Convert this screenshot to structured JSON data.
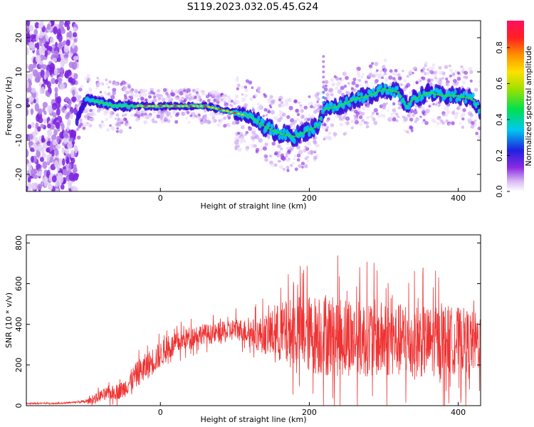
{
  "figure": {
    "title": "S119.2023.032.05.45.G24"
  },
  "chart_data": [
    {
      "type": "heatmap",
      "xlabel": "Height of straight line (km)",
      "ylabel": "Frequency (Hz)",
      "xlim": [
        -180,
        430
      ],
      "ylim": [
        -25,
        25
      ],
      "xticks": [
        0,
        200,
        400
      ],
      "yticks": [
        -20,
        -10,
        0,
        10,
        20
      ],
      "grid": false,
      "colorbar": {
        "label": "Normalized spectral amplitude",
        "ticks": [
          0.0,
          0.2,
          0.4,
          0.6,
          0.8
        ],
        "range": [
          0,
          0.95
        ],
        "colormap": "rainbow-white-violet-to-magenta"
      },
      "noise_band_x": [
        -180,
        -112
      ],
      "ridge": [
        {
          "x": -112,
          "y": -4
        },
        {
          "x": -100,
          "y": 2
        },
        {
          "x": -80,
          "y": 1
        },
        {
          "x": -60,
          "y": 0
        },
        {
          "x": -40,
          "y": 0
        },
        {
          "x": -20,
          "y": 0
        },
        {
          "x": 0,
          "y": 0
        },
        {
          "x": 20,
          "y": 0
        },
        {
          "x": 40,
          "y": 0
        },
        {
          "x": 60,
          "y": 0
        },
        {
          "x": 80,
          "y": -1
        },
        {
          "x": 100,
          "y": -2
        },
        {
          "x": 120,
          "y": -3
        },
        {
          "x": 140,
          "y": -6
        },
        {
          "x": 160,
          "y": -8
        },
        {
          "x": 180,
          "y": -9
        },
        {
          "x": 200,
          "y": -7
        },
        {
          "x": 210,
          "y": -6
        },
        {
          "x": 220,
          "y": -1
        },
        {
          "x": 240,
          "y": 0
        },
        {
          "x": 260,
          "y": 2
        },
        {
          "x": 280,
          "y": 3
        },
        {
          "x": 300,
          "y": 5
        },
        {
          "x": 320,
          "y": 4
        },
        {
          "x": 330,
          "y": 0
        },
        {
          "x": 340,
          "y": 2
        },
        {
          "x": 360,
          "y": 4
        },
        {
          "x": 380,
          "y": 3
        },
        {
          "x": 400,
          "y": 3
        },
        {
          "x": 420,
          "y": 2
        },
        {
          "x": 430,
          "y": -2
        }
      ]
    },
    {
      "type": "line",
      "xlabel": "Height of straight line (km)",
      "ylabel": "SNR (10 * v/v)",
      "xlim": [
        -180,
        430
      ],
      "ylim": [
        0,
        840
      ],
      "xticks": [
        0,
        200,
        400
      ],
      "yticks": [
        0,
        200,
        400,
        600,
        800
      ],
      "grid": false,
      "line_color": "#ee3333",
      "series": [
        {
          "x": [
            -180,
            -160,
            -140,
            -120,
            -110,
            -100,
            -90,
            -80,
            -70,
            -60,
            -50,
            -40,
            -30,
            -20,
            -10,
            0,
            10,
            20,
            30,
            40,
            50,
            60,
            70,
            80,
            90,
            100,
            110,
            120,
            130,
            140,
            150,
            160,
            170,
            180,
            190,
            200,
            210,
            220,
            230,
            240,
            250,
            260,
            270,
            280,
            290,
            300,
            310,
            320,
            330,
            340,
            350,
            360,
            370,
            380,
            390,
            400,
            410,
            420,
            430
          ],
          "values": [
            10,
            12,
            11,
            15,
            18,
            20,
            30,
            50,
            60,
            65,
            80,
            120,
            160,
            190,
            220,
            250,
            280,
            300,
            320,
            340,
            350,
            355,
            350,
            360,
            360,
            380,
            370,
            360,
            350,
            350,
            350,
            360,
            350,
            370,
            360,
            350,
            350,
            345,
            350,
            340,
            345,
            330,
            325,
            340,
            330,
            320,
            330,
            320,
            315,
            310,
            320,
            310,
            320,
            330,
            320,
            325,
            320,
            310,
            320
          ],
          "spread": [
            4,
            4,
            4,
            5,
            6,
            10,
            25,
            35,
            40,
            45,
            55,
            70,
            80,
            85,
            85,
            80,
            75,
            70,
            65,
            65,
            65,
            60,
            60,
            65,
            65,
            70,
            70,
            80,
            100,
            120,
            150,
            190,
            210,
            220,
            230,
            240,
            250,
            260,
            250,
            250,
            250,
            240,
            240,
            240,
            240,
            240,
            230,
            230,
            230,
            230,
            230,
            220,
            220,
            220,
            210,
            200,
            200,
            190,
            180
          ]
        }
      ]
    }
  ]
}
